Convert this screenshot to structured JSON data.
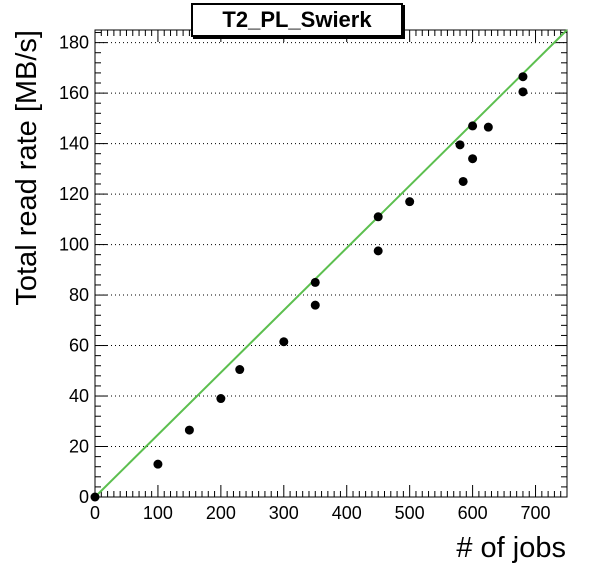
{
  "chart_data": {
    "type": "scatter",
    "title": "T2_PL_Swierk",
    "xlabel": "# of jobs",
    "ylabel": "Total read rate [MB/s]",
    "xlim": [
      0,
      750
    ],
    "ylim": [
      0,
      185
    ],
    "x_ticks": [
      "0",
      "100",
      "200",
      "300",
      "400",
      "500",
      "600",
      "700"
    ],
    "y_ticks": [
      "0",
      "20",
      "40",
      "60",
      "80",
      "100",
      "120",
      "140",
      "160",
      "180"
    ],
    "grid": "horizontal-dotted",
    "points": [
      {
        "x": 0,
        "y": 0
      },
      {
        "x": 100,
        "y": 13
      },
      {
        "x": 150,
        "y": 26.5
      },
      {
        "x": 200,
        "y": 39
      },
      {
        "x": 230,
        "y": 50.5
      },
      {
        "x": 300,
        "y": 61.5
      },
      {
        "x": 350,
        "y": 76
      },
      {
        "x": 350,
        "y": 85
      },
      {
        "x": 450,
        "y": 97.5
      },
      {
        "x": 450,
        "y": 111
      },
      {
        "x": 500,
        "y": 117
      },
      {
        "x": 580,
        "y": 139.5
      },
      {
        "x": 585,
        "y": 125
      },
      {
        "x": 600,
        "y": 134
      },
      {
        "x": 600,
        "y": 147
      },
      {
        "x": 625,
        "y": 146.5
      },
      {
        "x": 680,
        "y": 160.5
      },
      {
        "x": 680,
        "y": 166.5
      }
    ],
    "fit_line": {
      "x": [
        0,
        750
      ],
      "y": [
        0,
        185
      ],
      "color": "#5cbf4f"
    },
    "marker_color": "#000000"
  }
}
